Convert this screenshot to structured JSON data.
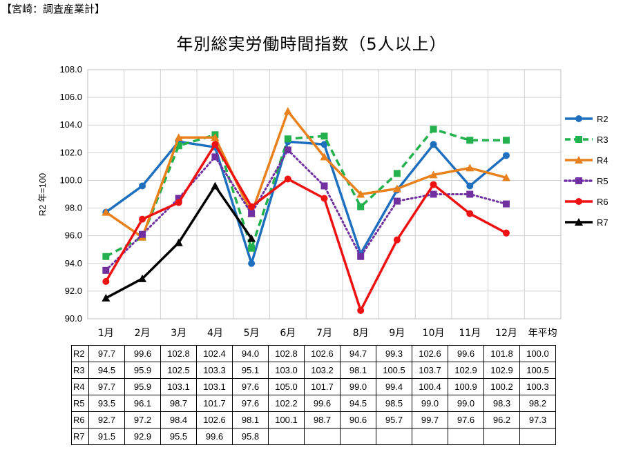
{
  "source_label": "【宮崎：調査産業計】",
  "chart_data": {
    "type": "line",
    "title": "年別総実労働時間指数（5人以上）",
    "ylabel": "R2 年=100",
    "xlabel": "",
    "ylim": [
      90,
      108
    ],
    "yticks": [
      "90.0",
      "92.0",
      "94.0",
      "96.0",
      "98.0",
      "100.0",
      "102.0",
      "104.0",
      "106.0",
      "108.0"
    ],
    "categories": [
      "1月",
      "2月",
      "3月",
      "4月",
      "5月",
      "6月",
      "7月",
      "8月",
      "9月",
      "10月",
      "11月",
      "12月",
      "年平均"
    ],
    "legend_position": "right",
    "grid": true,
    "series": [
      {
        "name": "R2",
        "color": "#1F6FBF",
        "dash": "solid",
        "marker": "circle",
        "values": [
          97.7,
          99.6,
          102.8,
          102.4,
          94.0,
          102.8,
          102.6,
          94.7,
          99.3,
          102.6,
          99.6,
          101.8,
          null
        ],
        "table": [
          "97.7",
          "99.6",
          "102.8",
          "102.4",
          "94.0",
          "102.8",
          "102.6",
          "94.7",
          "99.3",
          "102.6",
          "99.6",
          "101.8",
          "100.0"
        ]
      },
      {
        "name": "R3",
        "color": "#22B14C",
        "dash": "dashed",
        "marker": "square",
        "values": [
          94.5,
          95.9,
          102.5,
          103.3,
          95.1,
          103.0,
          103.2,
          98.1,
          100.5,
          103.7,
          102.9,
          102.9,
          null
        ],
        "table": [
          "94.5",
          "95.9",
          "102.5",
          "103.3",
          "95.1",
          "103.0",
          "103.2",
          "98.1",
          "100.5",
          "103.7",
          "102.9",
          "102.9",
          "100.5"
        ]
      },
      {
        "name": "R4",
        "color": "#E8801C",
        "dash": "solid",
        "marker": "triangle",
        "values": [
          97.7,
          95.9,
          103.1,
          103.1,
          97.6,
          105.0,
          101.7,
          99.0,
          99.4,
          100.4,
          100.9,
          100.2,
          null
        ],
        "table": [
          "97.7",
          "95.9",
          "103.1",
          "103.1",
          "97.6",
          "105.0",
          "101.7",
          "99.0",
          "99.4",
          "100.4",
          "100.9",
          "100.2",
          "100.3"
        ]
      },
      {
        "name": "R5",
        "color": "#7030A0",
        "dash": "dotted",
        "marker": "square",
        "values": [
          93.5,
          96.1,
          98.7,
          101.7,
          97.6,
          102.2,
          99.6,
          94.5,
          98.5,
          99.0,
          99.0,
          98.3,
          null
        ],
        "table": [
          "93.5",
          "96.1",
          "98.7",
          "101.7",
          "97.6",
          "102.2",
          "99.6",
          "94.5",
          "98.5",
          "99.0",
          "99.0",
          "98.3",
          "98.2"
        ]
      },
      {
        "name": "R6",
        "color": "#EE1111",
        "dash": "solid",
        "marker": "circle",
        "values": [
          92.7,
          97.2,
          98.4,
          102.6,
          98.1,
          100.1,
          98.7,
          90.6,
          95.7,
          99.7,
          97.6,
          96.2,
          null
        ],
        "table": [
          "92.7",
          "97.2",
          "98.4",
          "102.6",
          "98.1",
          "100.1",
          "98.7",
          "90.6",
          "95.7",
          "99.7",
          "97.6",
          "96.2",
          "97.3"
        ]
      },
      {
        "name": "R7",
        "color": "#000000",
        "dash": "solid",
        "marker": "triangle",
        "values": [
          91.5,
          92.9,
          95.5,
          99.6,
          95.8,
          null,
          null,
          null,
          null,
          null,
          null,
          null,
          null
        ],
        "table": [
          "91.5",
          "92.9",
          "95.5",
          "99.6",
          "95.8",
          "",
          "",
          "",
          "",
          "",
          "",
          "",
          ""
        ]
      }
    ]
  }
}
